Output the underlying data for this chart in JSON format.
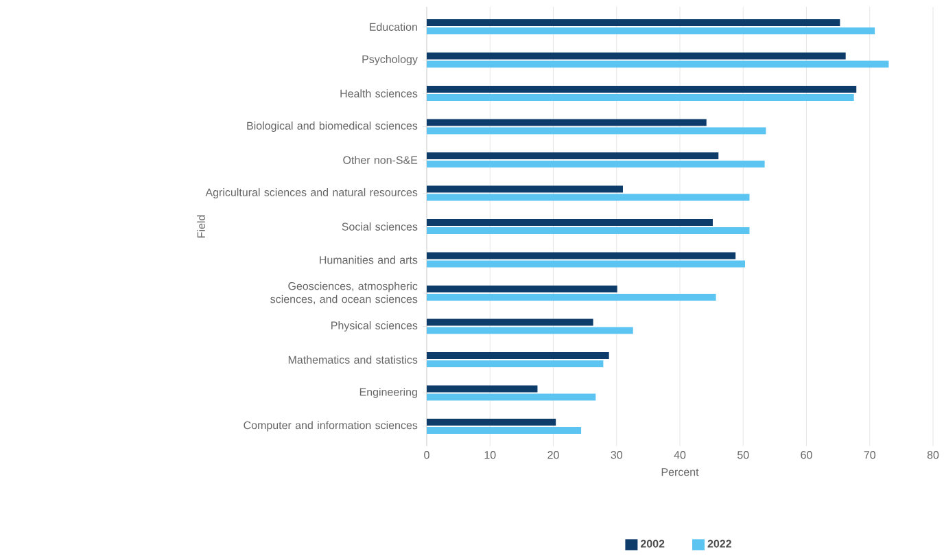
{
  "chart_data": {
    "type": "bar",
    "orientation": "horizontal",
    "xlabel": "Percent",
    "ylabel": "Field",
    "categories": [
      "Education",
      "Psychology",
      "Health sciences",
      "Biological and biomedical sciences",
      "Other non-S&E",
      "Agricultural sciences and natural resources",
      "Social sciences",
      "Humanities and arts",
      "Geosciences, atmospheric sciences, and ocean sciences",
      "Physical sciences",
      "Mathematics and statistics",
      "Engineering",
      "Computer and information sciences"
    ],
    "series": [
      {
        "name": "2002",
        "color": "#0d3c6b",
        "values": [
          65.3,
          66.2,
          67.9,
          44.2,
          46.1,
          31,
          45.2,
          48.8,
          30.1,
          26.3,
          28.8,
          17.5,
          20.4
        ]
      },
      {
        "name": "2022",
        "color": "#5cc4f0",
        "values": [
          70.8,
          73,
          67.5,
          53.6,
          53.4,
          51,
          51,
          50.3,
          45.7,
          32.6,
          27.9,
          26.7,
          24.4
        ]
      }
    ],
    "xlim": [
      0,
      80
    ],
    "xticks": [
      0,
      10,
      20,
      30,
      40,
      50,
      60,
      70,
      80
    ],
    "grid": "x",
    "legend": "bottom"
  }
}
